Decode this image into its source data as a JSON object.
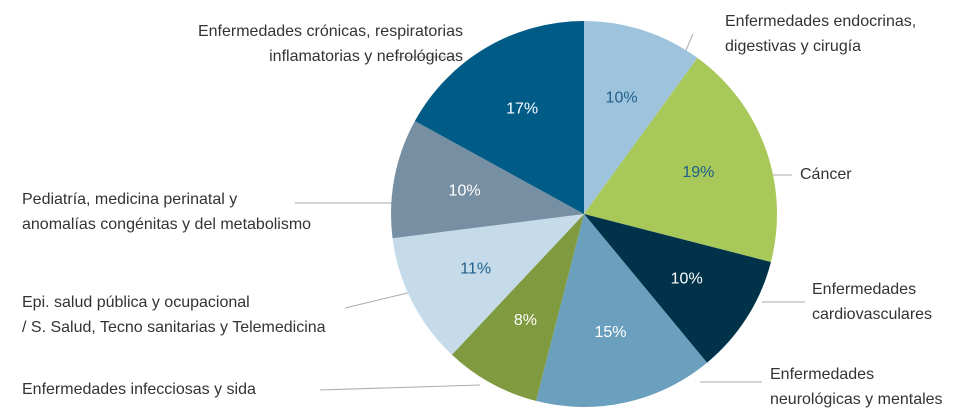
{
  "chart_data": {
    "type": "pie",
    "categories": [
      [
        "Enfermedades endocrinas,",
        "digestivas y cirugía"
      ],
      [
        "Cáncer"
      ],
      [
        "Enfermedades",
        "cardiovasculares"
      ],
      [
        "Enfermedades",
        "neurológicas y mentales"
      ],
      [
        "Enfermedades infecciosas y sida"
      ],
      [
        "Epi. salud pública y ocupacional",
        "/ S. Salud, Tecno sanitarias y Telemedicina"
      ],
      [
        "Pediatría, medicina perinatal y",
        "anomalías congénitas y del metabolismo"
      ],
      [
        "Enfermedades crónicas, respiratorias",
        "inflamatorias y nefrológicas"
      ]
    ],
    "values": [
      10,
      19,
      10,
      15,
      8,
      11,
      10,
      17
    ],
    "value_labels": [
      "10%",
      "19%",
      "10%",
      "15%",
      "8%",
      "11%",
      "10%",
      "17%"
    ],
    "colors": [
      "#9ec3dc",
      "#a8c859",
      "#00334a",
      "#6a9fbe",
      "#809a3f",
      "#c5dbea",
      "#778fa3",
      "#005c87"
    ]
  }
}
